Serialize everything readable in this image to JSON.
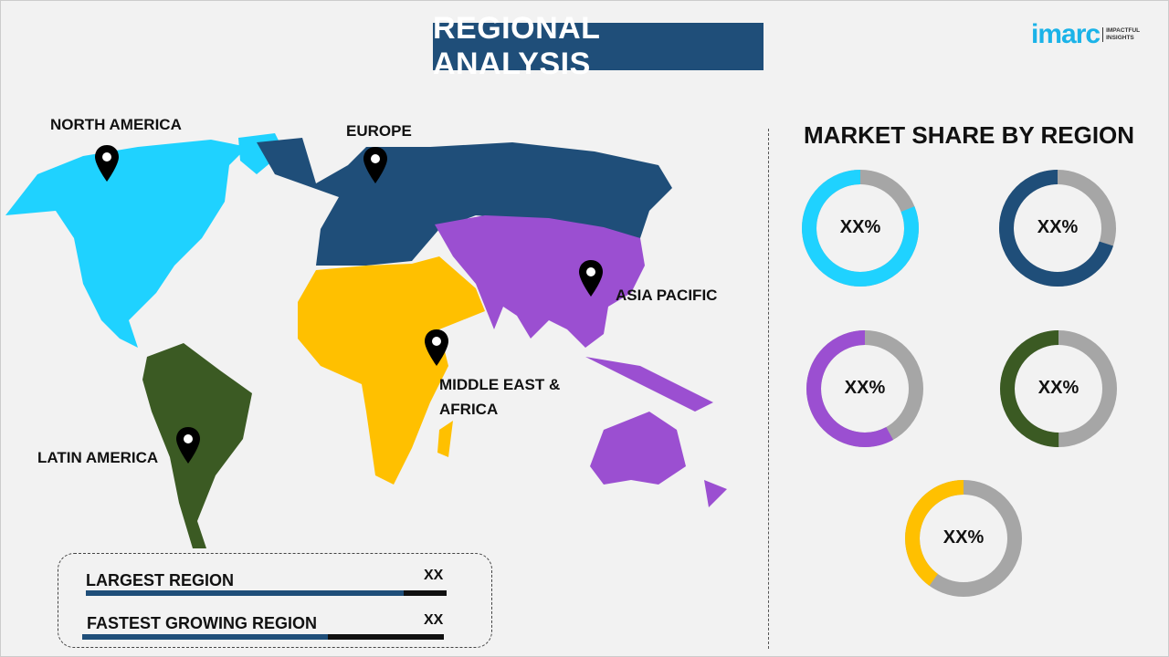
{
  "header": {
    "title": "REGIONAL ANALYSIS",
    "logo_word": "imarc",
    "logo_tagline": [
      "IMPACTFUL",
      "INSIGHTS"
    ]
  },
  "map": {
    "regions": [
      {
        "label": "NORTH AMERICA",
        "color": "#1fd2ff"
      },
      {
        "label": "EUROPE",
        "color": "#1f4e79"
      },
      {
        "label": "ASIA PACIFIC",
        "color": "#9b4fd1"
      },
      {
        "label": "MIDDLE EAST & AFRICA",
        "color": "#ffc000"
      },
      {
        "label": "LATIN AMERICA",
        "color": "#3b5a23"
      }
    ],
    "pin_icon": "map-pin-icon"
  },
  "share": {
    "title": "MARKET SHARE BY REGION",
    "track_color": "#a6a6a6",
    "donuts": [
      {
        "region": "NORTH AMERICA",
        "label": "XX%",
        "fraction": 0.81,
        "color": "#1fd2ff"
      },
      {
        "region": "EUROPE",
        "label": "XX%",
        "fraction": 0.7,
        "color": "#1f4e79"
      },
      {
        "region": "ASIA PACIFIC",
        "label": "XX%",
        "fraction": 0.58,
        "color": "#9b4fd1"
      },
      {
        "region": "LATIN AMERICA",
        "label": "XX%",
        "fraction": 0.5,
        "color": "#3b5a23"
      },
      {
        "region": "MIDDLE EAST & AFRICA",
        "label": "XX%",
        "fraction": 0.4,
        "color": "#ffc000"
      }
    ]
  },
  "summary": {
    "rows": [
      {
        "label": "LARGEST REGION",
        "value": "XX",
        "fill": 0.88
      },
      {
        "label": "FASTEST GROWING REGION",
        "value": "XX",
        "fill": 0.68
      }
    ]
  }
}
